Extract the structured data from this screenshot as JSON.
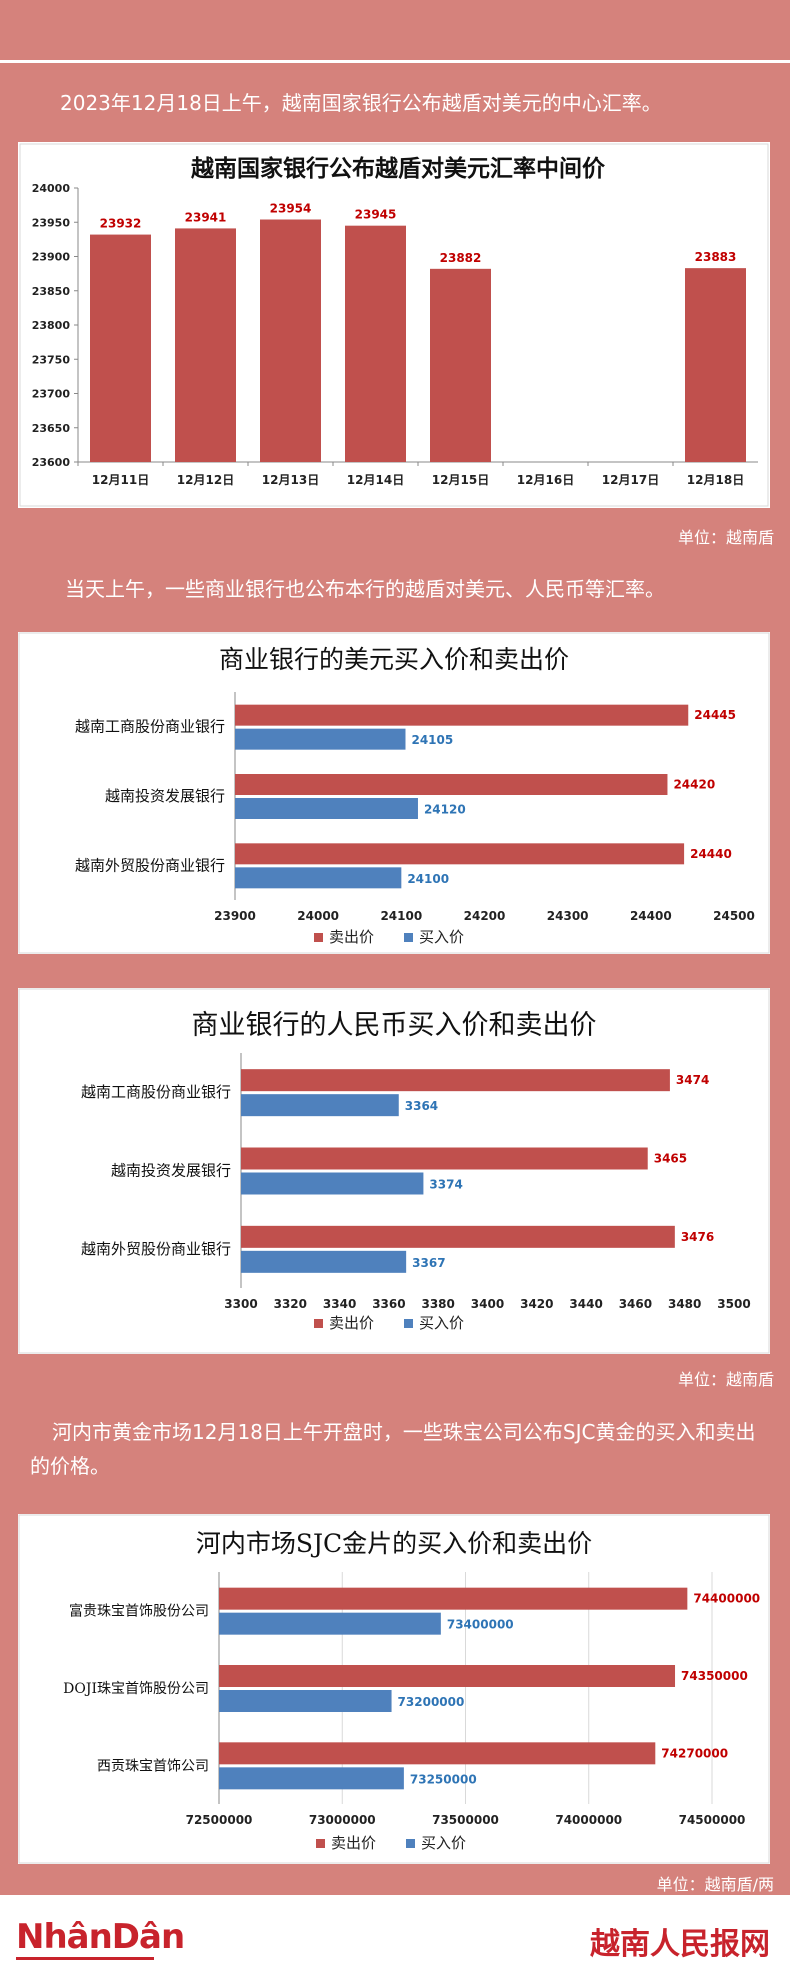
{
  "intro": {
    "p1": "2023年12月18日上午，越南国家银行公布越盾对美元的中心汇率。",
    "p2": "当天上午，一些商业银行也公布本行的越盾对美元、人民币等汇率。",
    "p3": "河内市黄金市场12月18日上午开盘时，一些珠宝公司公布SJC黄金的买入和卖出的价格。"
  },
  "units": {
    "u1": "单位：越南盾",
    "u2": "单位：越南盾",
    "u3": "单位：越南盾/两"
  },
  "footer": {
    "left_logo": "NhânDân",
    "right_logo": "越南人民报网"
  },
  "colors": {
    "sell": "#c0504d",
    "buy": "#4f81bd",
    "background": "#d5827c"
  },
  "chart_data": [
    {
      "type": "bar",
      "title": "越南国家银行公布越盾对美元汇率中间价",
      "categories": [
        "12月11日",
        "12月12日",
        "12月13日",
        "12月14日",
        "12月15日",
        "12月16日",
        "12月17日",
        "12月18日"
      ],
      "values": [
        23932,
        23941,
        23954,
        23945,
        23882,
        null,
        null,
        23883
      ],
      "value_labels": [
        "23932",
        "23941",
        "23954",
        "23945",
        "23882",
        "",
        "",
        "23883"
      ],
      "ylim": [
        23600,
        24000
      ],
      "yticks": [
        "23600",
        "23650",
        "23700",
        "23750",
        "23800",
        "23850",
        "23900",
        "23950",
        "24000"
      ],
      "xlabel": "",
      "ylabel": "",
      "grid": false
    },
    {
      "type": "bar",
      "orientation": "horizontal",
      "title": "商业银行的美元买入价和卖出价",
      "categories": [
        "越南工商股份商业银行",
        "越南投资发展银行",
        "越南外贸股份商业银行"
      ],
      "series": [
        {
          "name": "卖出价",
          "values": [
            24445,
            24420,
            24440
          ],
          "labels": [
            "24445",
            "24420",
            "24440"
          ]
        },
        {
          "name": "买入价",
          "values": [
            24105,
            24120,
            24100
          ],
          "labels": [
            "24105",
            "24120",
            "24100"
          ]
        }
      ],
      "xlim": [
        23900,
        24500
      ],
      "xticks": [
        "23900",
        "24000",
        "24100",
        "24200",
        "24300",
        "24400",
        "24500"
      ],
      "legend": "bottom",
      "grid": false
    },
    {
      "type": "bar",
      "orientation": "horizontal",
      "title": "商业银行的人民币买入价和卖出价",
      "categories": [
        "越南工商股份商业银行",
        "越南投资发展银行",
        "越南外贸股份商业银行"
      ],
      "series": [
        {
          "name": "卖出价",
          "values": [
            3474,
            3465,
            3476
          ],
          "labels": [
            "3474",
            "3465",
            "3476"
          ]
        },
        {
          "name": "买入价",
          "values": [
            3364,
            3374,
            3367
          ],
          "labels": [
            "3364",
            "3374",
            "3367"
          ]
        }
      ],
      "xlim": [
        3300,
        3500
      ],
      "xticks": [
        "3300",
        "3320",
        "3340",
        "3360",
        "3380",
        "3400",
        "3420",
        "3440",
        "3460",
        "3480",
        "3500"
      ],
      "legend": "bottom",
      "grid": false
    },
    {
      "type": "bar",
      "orientation": "horizontal",
      "title": "河内市场SJC金片的买入价和卖出价",
      "categories": [
        "富贵珠宝首饰股份公司",
        "DOJI珠宝首饰股份公司",
        "西贡珠宝首饰公司"
      ],
      "series": [
        {
          "name": "卖出价",
          "values": [
            74400000,
            74350000,
            74270000
          ],
          "labels": [
            "74400000",
            "74350000",
            "74270000"
          ]
        },
        {
          "name": "买入价",
          "values": [
            73400000,
            73200000,
            73250000
          ],
          "labels": [
            "73400000",
            "73200000",
            "73250000"
          ]
        }
      ],
      "xlim": [
        72500000,
        74500000
      ],
      "xticks": [
        "72500000",
        "73000000",
        "73500000",
        "74000000",
        "74500000"
      ],
      "legend": "bottom",
      "grid": true
    }
  ]
}
